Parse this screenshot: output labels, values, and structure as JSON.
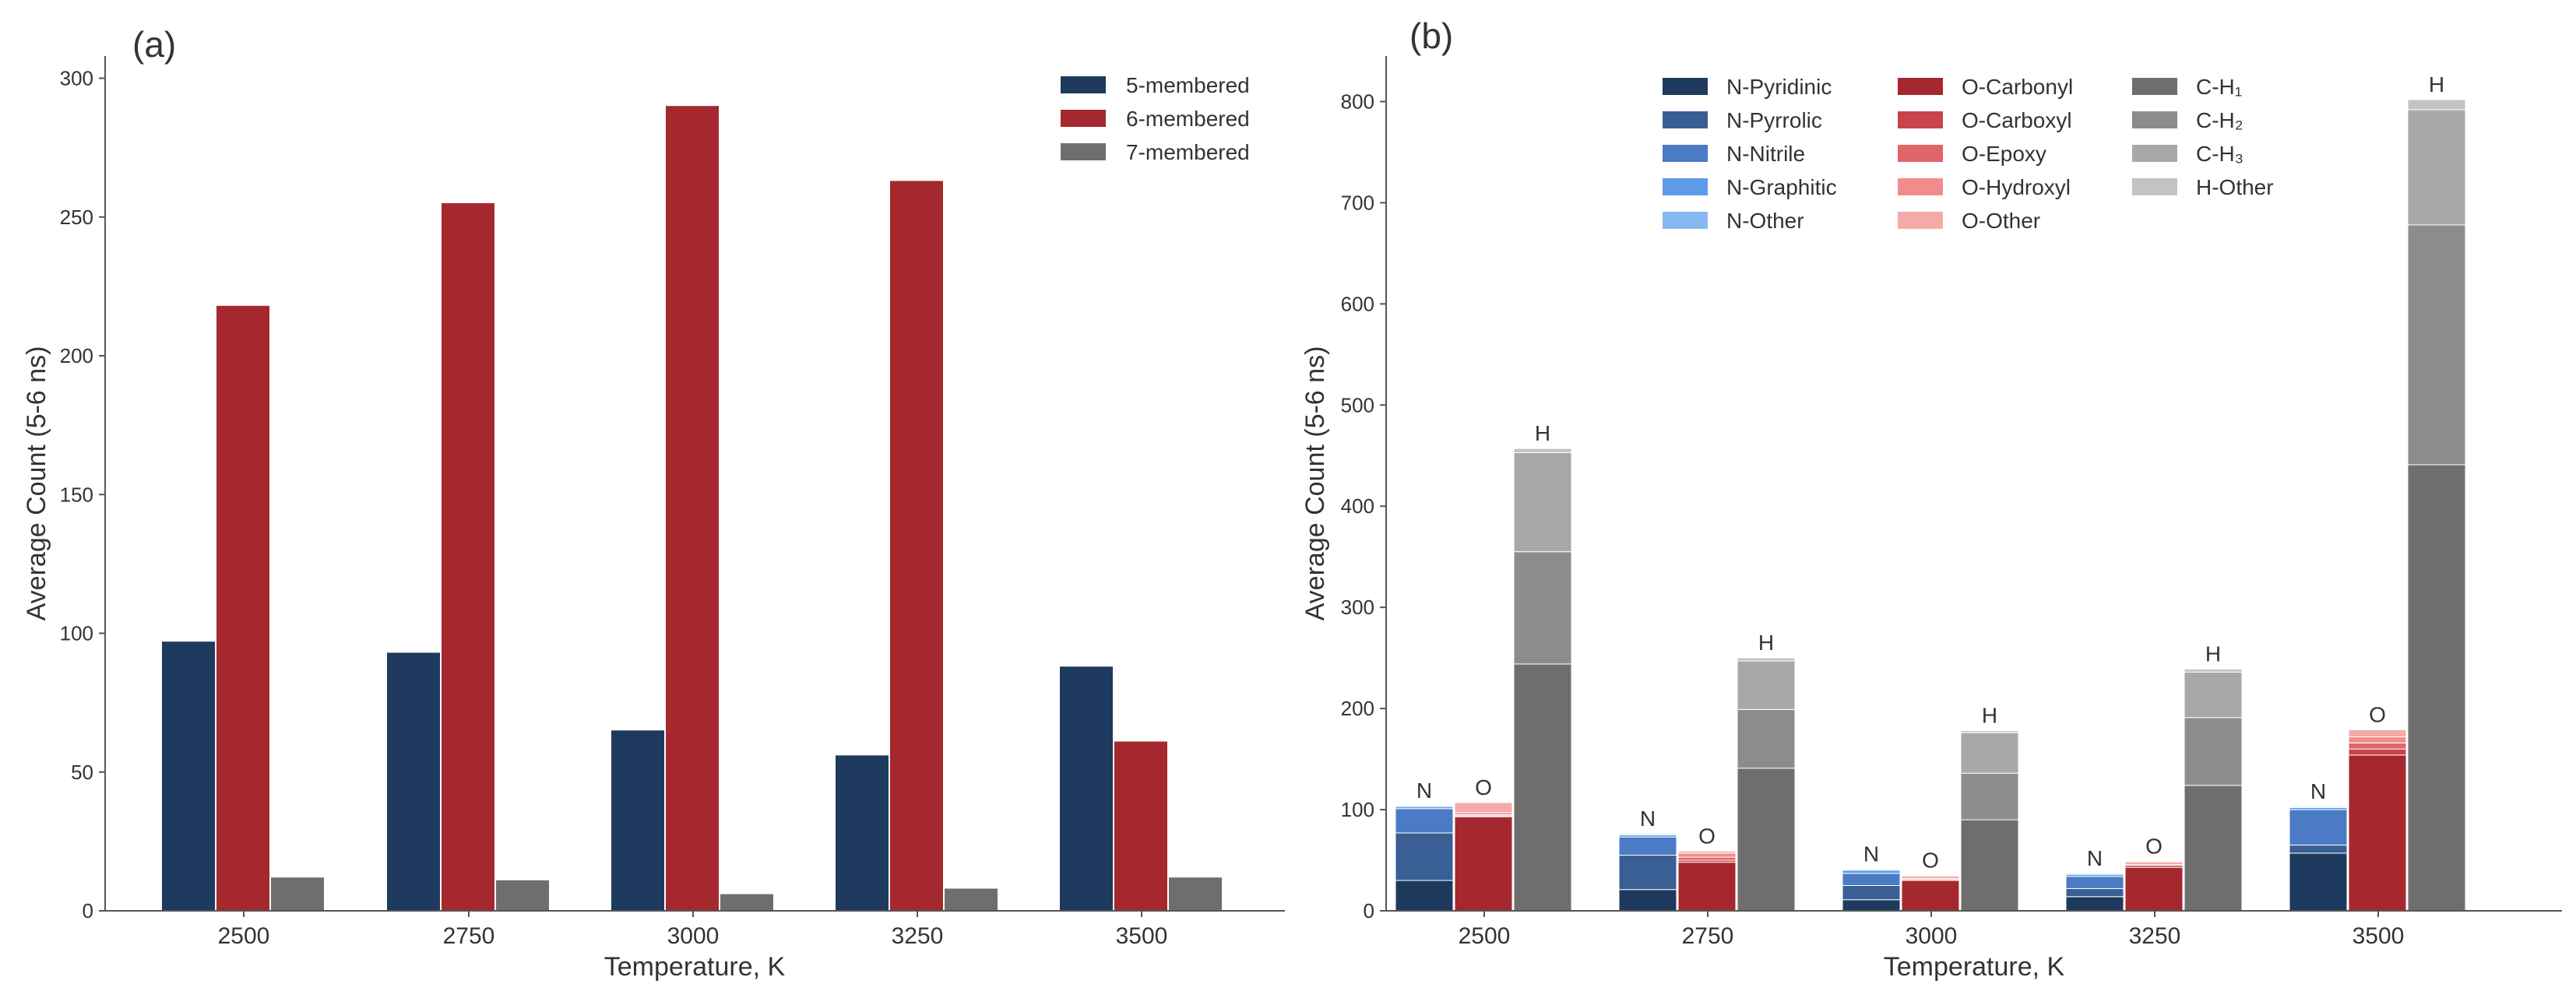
{
  "panel_a": {
    "label": "(a)",
    "chart_data": {
      "type": "bar",
      "categories": [
        "2500",
        "2750",
        "3000",
        "3250",
        "3500"
      ],
      "series": [
        {
          "name": "5-membered",
          "color": "#1f3a5f",
          "values": [
            97,
            93,
            65,
            56,
            88
          ]
        },
        {
          "name": "6-membered",
          "color": "#a4282d",
          "values": [
            218,
            255,
            290,
            263,
            61
          ]
        },
        {
          "name": "7-membered",
          "color": "#6e6e6e",
          "values": [
            12,
            11,
            6,
            8,
            12
          ]
        }
      ],
      "xlabel": "Temperature, K",
      "ylabel": "Average Count (5-6 ns)",
      "ylim": [
        0,
        308
      ],
      "yticks": [
        0,
        50,
        100,
        150,
        200,
        250,
        300
      ],
      "legend_position": "top-right",
      "grid": false
    }
  },
  "panel_b": {
    "label": "(b)",
    "chart_data": {
      "type": "bar",
      "stacked": true,
      "categories": [
        "2500",
        "2750",
        "3000",
        "3250",
        "3500"
      ],
      "group_labels": [
        "N",
        "O",
        "H"
      ],
      "groups": [
        {
          "label": "N",
          "series": [
            {
              "name": "N-Pyridinic",
              "color": "#1f3a5f",
              "values": [
                30,
                21,
                11,
                14,
                57
              ]
            },
            {
              "name": "N-Pyrrolic",
              "color": "#3a5f95",
              "values": [
                47,
                34,
                14,
                8,
                8
              ]
            },
            {
              "name": "N-Nitrile",
              "color": "#4a7bc4",
              "values": [
                24,
                18,
                12,
                12,
                35
              ]
            },
            {
              "name": "N-Graphitic",
              "color": "#5b9be8",
              "values": [
                2,
                2,
                3,
                2,
                2
              ]
            },
            {
              "name": "N-Other",
              "color": "#86b8f2",
              "values": [
                1,
                1,
                1,
                1,
                1
              ]
            }
          ]
        },
        {
          "label": "O",
          "series": [
            {
              "name": "O-Carbonyl",
              "color": "#a4282d",
              "values": [
                93,
                48,
                30,
                43,
                154
              ]
            },
            {
              "name": "O-Carboxyl",
              "color": "#c8434a",
              "values": [
                1,
                2,
                1,
                2,
                6
              ]
            },
            {
              "name": "O-Epoxy",
              "color": "#e06468",
              "values": [
                1,
                3,
                1,
                1,
                6
              ]
            },
            {
              "name": "O-Hydroxyl",
              "color": "#f28c8c",
              "values": [
                2,
                4,
                2,
                2,
                6
              ]
            },
            {
              "name": "O-Other",
              "color": "#f5aaaa",
              "values": [
                10,
                2,
                1,
                1,
                7
              ]
            }
          ]
        },
        {
          "label": "H",
          "series": [
            {
              "name": "C-H₁",
              "color": "#6e6e6e",
              "values": [
                244,
                141,
                90,
                124,
                441
              ]
            },
            {
              "name": "C-H₂",
              "color": "#8c8c8c",
              "values": [
                111,
                58,
                46,
                67,
                237
              ]
            },
            {
              "name": "C-H₃",
              "color": "#a8a8a8",
              "values": [
                98,
                48,
                40,
                45,
                114
              ]
            },
            {
              "name": "H-Other",
              "color": "#c3c3c3",
              "values": [
                4,
                3,
                2,
                3,
                10
              ]
            }
          ]
        }
      ],
      "xlabel": "Temperature, K",
      "ylabel": "Average Count (5-6 ns)",
      "ylim": [
        0,
        845
      ],
      "yticks": [
        0,
        100,
        200,
        300,
        400,
        500,
        600,
        700,
        800
      ],
      "legend_position": "top-center",
      "grid": false
    }
  }
}
